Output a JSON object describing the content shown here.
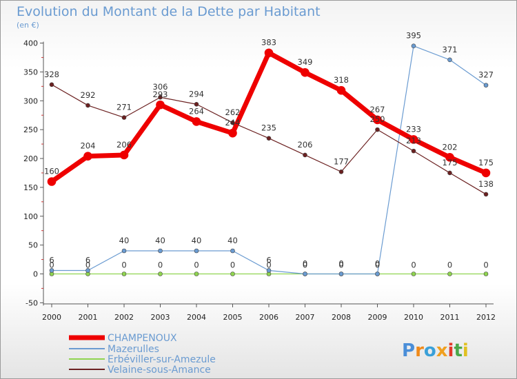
{
  "chart_data": {
    "type": "line",
    "title": "Evolution du Montant de la Dette par Habitant",
    "subtitle": "(en €)",
    "x": [
      "2000",
      "2001",
      "2002",
      "2003",
      "2004",
      "2005",
      "2006",
      "2007",
      "2008",
      "2009",
      "2010",
      "2011",
      "2012"
    ],
    "y_ticks": [
      "400",
      "350",
      "300",
      "250",
      "200",
      "150",
      "100",
      "50",
      "0",
      "-50"
    ],
    "ylim": [
      -50,
      400
    ],
    "grid": false,
    "legend_position": "bottom-left",
    "series": [
      {
        "name": "CHAMPENOUX",
        "color": "#ee0000",
        "values": [
          160,
          204,
          206,
          293,
          264,
          244,
          383,
          349,
          318,
          267,
          233,
          202,
          175
        ],
        "labels": [
          "160",
          "204",
          "206",
          "293",
          "264",
          "244",
          "383",
          "349",
          "318",
          "267",
          "233",
          "202",
          "175"
        ]
      },
      {
        "name": "Mazerulles",
        "color": "#6a9bd1",
        "values": [
          6,
          6,
          40,
          40,
          40,
          40,
          6,
          0,
          0,
          0,
          395,
          371,
          327
        ],
        "labels": [
          "6",
          "6",
          "40",
          "40",
          "40",
          "40",
          "6",
          "0",
          "0",
          "0",
          "395",
          "371",
          "327"
        ]
      },
      {
        "name": "Erbéviller-sur-Amezule",
        "color": "#8fd44f",
        "values": [
          0,
          0,
          0,
          0,
          0,
          0,
          0,
          0,
          0,
          0,
          0,
          0,
          0
        ],
        "labels": [
          "0",
          "0",
          "0",
          "0",
          "0",
          "0",
          "0",
          "0",
          "0",
          "0",
          "0",
          "0",
          "0"
        ]
      },
      {
        "name": "Velaine-sous-Amance",
        "color": "#6b2020",
        "values": [
          328,
          292,
          271,
          306,
          294,
          262,
          235,
          206,
          177,
          250,
          213,
          175,
          138
        ],
        "labels": [
          "328",
          "292",
          "271",
          "306",
          "294",
          "262",
          "235",
          "206",
          "177",
          "250",
          "213",
          "175",
          "138"
        ]
      }
    ]
  },
  "logo": {
    "text": "Proxiti"
  }
}
